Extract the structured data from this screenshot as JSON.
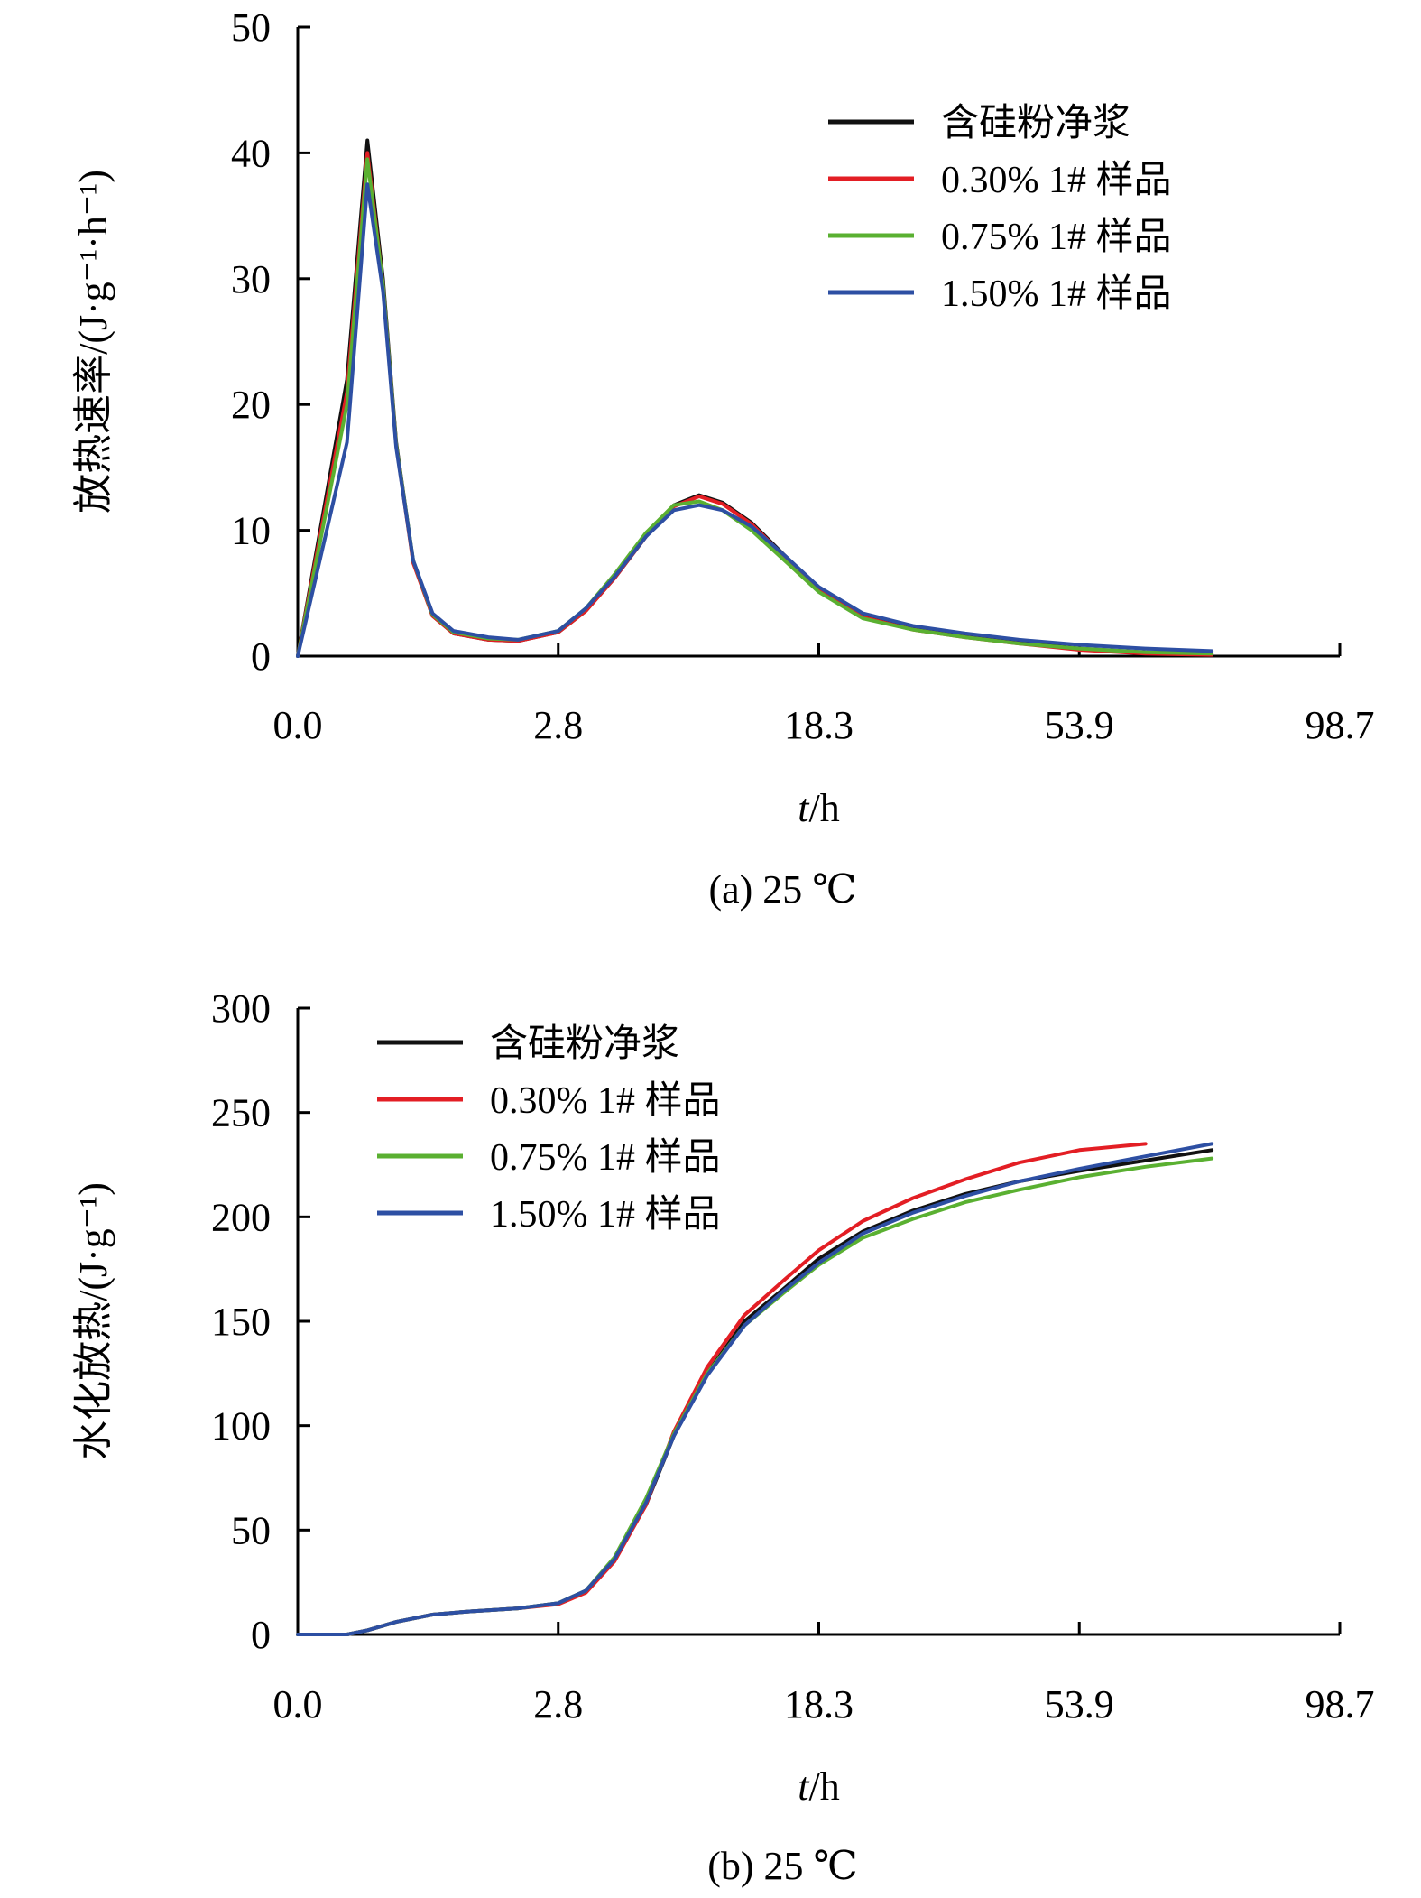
{
  "chart_data": [
    {
      "type": "line",
      "caption": "(a) 25 ℃",
      "xlabel_italic": "t",
      "xlabel_rest": "/h",
      "ylabel": "放热速率/(J·g⁻¹·h⁻¹)",
      "ylim": [
        0,
        50
      ],
      "yticks": [
        "0",
        "10",
        "20",
        "30",
        "40",
        "50"
      ],
      "xticks": [
        "0.0",
        "2.8",
        "18.3",
        "53.9",
        "98.7"
      ],
      "x_scale": "nonlinear (tick labels 0.0, 2.8, 18.3, 53.9, 98.7 equally spaced)",
      "legend_position": "top-right",
      "grid": false,
      "x": [
        0.0,
        0.1,
        0.2,
        0.3,
        0.4,
        0.55,
        0.75,
        1.0,
        1.5,
        2.0,
        2.8,
        3.8,
        5.0,
        6.5,
        8.0,
        9.5,
        11.0,
        13.0,
        15.5,
        18.3,
        23.0,
        29.0,
        36.0,
        44.0,
        53.9,
        64.0,
        75.0
      ],
      "series": [
        {
          "name": "含硅粉净浆",
          "color": "#111111",
          "values": [
            0,
            22,
            41,
            30,
            17,
            7.5,
            3.2,
            1.8,
            1.3,
            1.2,
            1.9,
            3.6,
            6.2,
            9.5,
            12.0,
            12.8,
            12.2,
            10.6,
            8.0,
            5.4,
            3.2,
            2.2,
            1.6,
            1.1,
            0.6,
            0.3,
            0.2
          ]
        },
        {
          "name": "0.30% 1# 样品",
          "color": "#e31e24",
          "values": [
            0,
            21,
            40,
            29.5,
            16.8,
            7.4,
            3.2,
            1.8,
            1.3,
            1.2,
            1.9,
            3.6,
            6.2,
            9.5,
            11.9,
            12.7,
            12.1,
            10.5,
            7.9,
            5.3,
            3.1,
            2.1,
            1.5,
            1.0,
            0.5,
            0.2,
            0.1
          ]
        },
        {
          "name": "0.75% 1# 样品",
          "color": "#5ab031",
          "values": [
            0,
            20,
            39.5,
            29.5,
            16.8,
            7.6,
            3.3,
            1.9,
            1.4,
            1.3,
            2.0,
            3.8,
            6.5,
            9.8,
            12.0,
            12.3,
            11.6,
            10.0,
            7.6,
            5.1,
            3.0,
            2.1,
            1.5,
            1.0,
            0.6,
            0.3,
            0.2
          ]
        },
        {
          "name": "1.50% 1# 样品",
          "color": "#2d4fa3",
          "values": [
            0,
            17,
            37.5,
            29,
            16.6,
            7.6,
            3.4,
            2.0,
            1.5,
            1.3,
            2.0,
            3.8,
            6.3,
            9.5,
            11.6,
            12.0,
            11.6,
            10.3,
            8.0,
            5.5,
            3.4,
            2.4,
            1.8,
            1.3,
            0.9,
            0.6,
            0.4
          ]
        }
      ]
    },
    {
      "type": "line",
      "caption": "(b) 25 ℃",
      "xlabel_italic": "t",
      "xlabel_rest": "/h",
      "ylabel": "水化放热/(J·g⁻¹)",
      "ylim": [
        0,
        300
      ],
      "yticks": [
        "0",
        "50",
        "100",
        "150",
        "200",
        "250",
        "300"
      ],
      "xticks": [
        "0.0",
        "2.8",
        "18.3",
        "53.9",
        "98.7"
      ],
      "x_scale": "nonlinear (tick labels 0.0, 2.8, 18.3, 53.9, 98.7 equally spaced)",
      "legend_position": "top-left",
      "grid": false,
      "x": [
        0.0,
        0.1,
        0.2,
        0.4,
        0.75,
        1.2,
        2.0,
        2.8,
        3.8,
        5.0,
        6.5,
        8.0,
        10.0,
        12.5,
        15.5,
        18.3,
        23.0,
        29.0,
        36.0,
        44.0,
        53.9,
        64.0,
        75.0
      ],
      "series": [
        {
          "name": "含硅粉净浆",
          "color": "#111111",
          "values": [
            0,
            0,
            2,
            6,
            9.5,
            11,
            12.5,
            15,
            21,
            36,
            62,
            95,
            125,
            150,
            166,
            180,
            193,
            203,
            211,
            217,
            222,
            227,
            232
          ]
        },
        {
          "name": "0.30% 1# 样品",
          "color": "#e31e24",
          "values": [
            0,
            0,
            2,
            6,
            9.5,
            11,
            12.5,
            14.5,
            20,
            35,
            62,
            97,
            128,
            153,
            170,
            184,
            198,
            209,
            218,
            226,
            232,
            235,
            null
          ]
        },
        {
          "name": "0.75% 1# 样品",
          "color": "#5ab031",
          "values": [
            0,
            0,
            2,
            6,
            9.5,
            11,
            12.5,
            15,
            21,
            37,
            65,
            96,
            125,
            148,
            164,
            177,
            190,
            199,
            207,
            213,
            219,
            224,
            228
          ]
        },
        {
          "name": "1.50% 1# 样品",
          "color": "#2d4fa3",
          "values": [
            0,
            0,
            2,
            6,
            9.5,
            11,
            12.5,
            15,
            21,
            36,
            63,
            95,
            124,
            148,
            165,
            178,
            192,
            202,
            210,
            217,
            223,
            229,
            235
          ]
        }
      ]
    }
  ]
}
